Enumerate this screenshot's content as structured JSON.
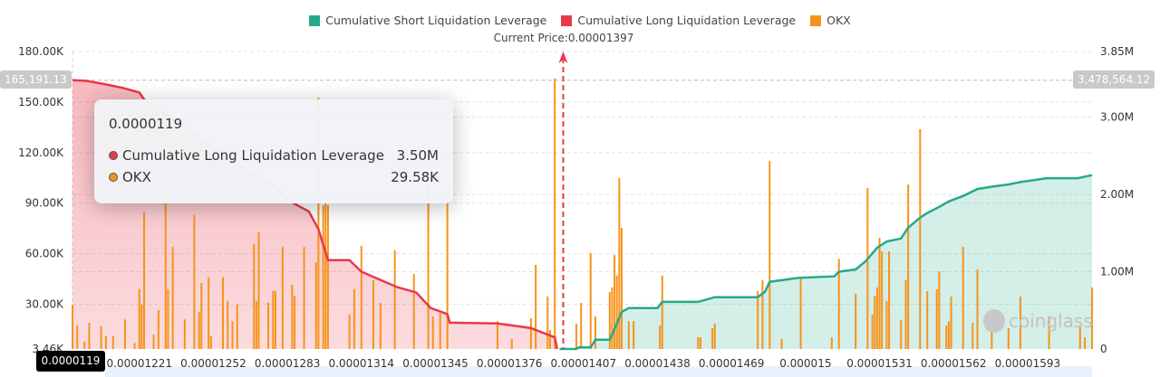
{
  "chart_data": {
    "type": "bar+area",
    "legend": [
      {
        "name": "Cumulative Short Liquidation Leverage",
        "color": "#26a98a"
      },
      {
        "name": "Cumulative Long Liquidation Leverage",
        "color": "#e8394a"
      },
      {
        "name": "OKX",
        "color": "#f7931a"
      }
    ],
    "legend_position": "top",
    "current_price_label": "Current Price:0.00001397",
    "current_price": 1.397e-05,
    "xlim": [
      1.193e-05,
      1.62e-05
    ],
    "x_ticks": [
      "0.00001221",
      "0.00001252",
      "0.00001283",
      "0.00001314",
      "0.00001345",
      "0.00001376",
      "0.00001407",
      "0.00001438",
      "0.00001469",
      "0.000015",
      "0.00001531",
      "0.00001562",
      "0.00001593"
    ],
    "y_left": {
      "ticks": [
        "180.00K",
        "150.00K",
        "120.00K",
        "90.00K",
        "60.00K",
        "30.00K",
        "3.46K"
      ],
      "tick_values": [
        180,
        150,
        120,
        90,
        60,
        30,
        3.46
      ],
      "range": [
        3.46,
        180
      ],
      "unit": "K"
    },
    "y_right": {
      "ticks": [
        "3.85M",
        "3.00M",
        "2.00M",
        "1.00M",
        "0"
      ],
      "tick_values": [
        3.85,
        3,
        2,
        1,
        0
      ],
      "range": [
        0,
        3.85
      ],
      "unit": "M"
    },
    "grid": true,
    "crosshair": {
      "x_label": "0.0000119",
      "y_left_label": "165,191.13",
      "y_right_label": "3,478,564.12"
    },
    "tooltip": {
      "title": "0.0000119",
      "rows": [
        {
          "label": "Cumulative Long Liquidation Leverage",
          "value": "3.50M",
          "color": "#e8394a"
        },
        {
          "label": "OKX",
          "value": "29.58K",
          "color": "#f7931a"
        }
      ]
    },
    "watermark": "coinglass",
    "long_curve_M": [
      [
        1.193e-05,
        3.48
      ],
      [
        1.199e-05,
        3.47
      ],
      [
        1.206e-05,
        3.43
      ],
      [
        1.214e-05,
        3.38
      ],
      [
        1.221e-05,
        3.32
      ],
      [
        1.223e-05,
        3.23
      ],
      [
        1.239e-05,
        2.88
      ],
      [
        1.261e-05,
        2.41
      ],
      [
        1.277e-05,
        2.11
      ],
      [
        1.286e-05,
        1.88
      ],
      [
        1.292e-05,
        1.78
      ],
      [
        1.296e-05,
        1.55
      ],
      [
        1.3e-05,
        1.15
      ],
      [
        1.309e-05,
        1.15
      ],
      [
        1.314e-05,
        1.0
      ],
      [
        1.32e-05,
        0.92
      ],
      [
        1.329e-05,
        0.8
      ],
      [
        1.337e-05,
        0.73
      ],
      [
        1.343e-05,
        0.53
      ],
      [
        1.35e-05,
        0.45
      ],
      [
        1.351e-05,
        0.34
      ],
      [
        1.371e-05,
        0.33
      ],
      [
        1.385e-05,
        0.27
      ],
      [
        1.395e-05,
        0.15
      ],
      [
        1.396e-05,
        0
      ]
    ],
    "short_curve_M": [
      [
        1.397e-05,
        0
      ],
      [
        1.404e-05,
        0
      ],
      [
        1.405e-05,
        0.02
      ],
      [
        1.41e-05,
        0.02
      ],
      [
        1.412e-05,
        0.12
      ],
      [
        1.418e-05,
        0.12
      ],
      [
        1.421e-05,
        0.33
      ],
      [
        1.423e-05,
        0.48
      ],
      [
        1.426e-05,
        0.53
      ],
      [
        1.438e-05,
        0.53
      ],
      [
        1.44e-05,
        0.61
      ],
      [
        1.455e-05,
        0.61
      ],
      [
        1.462e-05,
        0.67
      ],
      [
        1.48e-05,
        0.67
      ],
      [
        1.483e-05,
        0.74
      ],
      [
        1.485e-05,
        0.87
      ],
      [
        1.497e-05,
        0.92
      ],
      [
        1.512e-05,
        0.94
      ],
      [
        1.514e-05,
        1.0
      ],
      [
        1.521e-05,
        1.03
      ],
      [
        1.525e-05,
        1.13
      ],
      [
        1.53e-05,
        1.31
      ],
      [
        1.534e-05,
        1.39
      ],
      [
        1.54e-05,
        1.43
      ],
      [
        1.543e-05,
        1.57
      ],
      [
        1.548e-05,
        1.7
      ],
      [
        1.551e-05,
        1.76
      ],
      [
        1.556e-05,
        1.84
      ],
      [
        1.56e-05,
        1.91
      ],
      [
        1.566e-05,
        1.98
      ],
      [
        1.572e-05,
        2.07
      ],
      [
        1.578e-05,
        2.1
      ],
      [
        1.585e-05,
        2.13
      ],
      [
        1.59e-05,
        2.16
      ],
      [
        1.601e-05,
        2.21
      ],
      [
        1.614e-05,
        2.21
      ],
      [
        1.62e-05,
        2.25
      ]
    ],
    "okx_bars_K": [
      [
        1.193e-05,
        29.58
      ],
      [
        1.195e-05,
        17.4
      ],
      [
        1.198e-05,
        7.8
      ],
      [
        1.2e-05,
        19
      ],
      [
        1.205e-05,
        17
      ],
      [
        1.207e-05,
        11
      ],
      [
        1.21e-05,
        11
      ],
      [
        1.215e-05,
        21
      ],
      [
        1.219e-05,
        7
      ],
      [
        1.221e-05,
        39
      ],
      [
        1.222e-05,
        30
      ],
      [
        1.223e-05,
        84.5
      ],
      [
        1.227e-05,
        12
      ],
      [
        1.229e-05,
        26.5
      ],
      [
        1.232e-05,
        111
      ],
      [
        1.233e-05,
        39
      ],
      [
        1.235e-05,
        64
      ],
      [
        1.24e-05,
        21
      ],
      [
        1.244e-05,
        83
      ],
      [
        1.246e-05,
        25.5
      ],
      [
        1.247e-05,
        42.6
      ],
      [
        1.25e-05,
        46
      ],
      [
        1.251e-05,
        11
      ],
      [
        1.256e-05,
        46
      ],
      [
        1.258e-05,
        32
      ],
      [
        1.26e-05,
        20
      ],
      [
        1.262e-05,
        30
      ],
      [
        1.269e-05,
        66
      ],
      [
        1.27e-05,
        32
      ],
      [
        1.271e-05,
        72.7
      ],
      [
        1.275e-05,
        31
      ],
      [
        1.277e-05,
        38
      ],
      [
        1.278e-05,
        38
      ],
      [
        1.281e-05,
        64
      ],
      [
        1.285e-05,
        41.6
      ],
      [
        1.286e-05,
        35
      ],
      [
        1.29e-05,
        64
      ],
      [
        1.295e-05,
        55
      ],
      [
        1.296e-05,
        152.6
      ],
      [
        1.298e-05,
        88.8
      ],
      [
        1.299e-05,
        92.5
      ],
      [
        1.3e-05,
        88.8
      ],
      [
        1.309e-05,
        23.9
      ],
      [
        1.311e-05,
        39
      ],
      [
        1.314e-05,
        64.6
      ],
      [
        1.319e-05,
        44.2
      ],
      [
        1.322e-05,
        30.8
      ],
      [
        1.328e-05,
        62
      ],
      [
        1.336e-05,
        48
      ],
      [
        1.342e-05,
        103
      ],
      [
        1.344e-05,
        22.8
      ],
      [
        1.347e-05,
        24.4
      ],
      [
        1.35e-05,
        91
      ],
      [
        1.371e-05,
        20
      ],
      [
        1.377e-05,
        9.4
      ],
      [
        1.385e-05,
        21.7
      ],
      [
        1.387e-05,
        53.4
      ],
      [
        1.392e-05,
        34.6
      ],
      [
        1.393e-05,
        14.7
      ],
      [
        1.395e-05,
        164
      ],
      [
        1.404e-05,
        18.5
      ],
      [
        1.406e-05,
        30.8
      ],
      [
        1.41e-05,
        60.4
      ],
      [
        1.412e-05,
        22.8
      ],
      [
        1.418e-05,
        37.3
      ],
      [
        1.419e-05,
        40
      ],
      [
        1.42e-05,
        59.3
      ],
      [
        1.421e-05,
        47
      ],
      [
        1.422e-05,
        105
      ],
      [
        1.423e-05,
        75.4
      ],
      [
        1.426e-05,
        20
      ],
      [
        1.428e-05,
        20
      ],
      [
        1.439e-05,
        17.4
      ],
      [
        1.44e-05,
        47
      ],
      [
        1.455e-05,
        10.4
      ],
      [
        1.456e-05,
        10.4
      ],
      [
        1.461e-05,
        15.8
      ],
      [
        1.462e-05,
        18.5
      ],
      [
        1.48e-05,
        37.8
      ],
      [
        1.482e-05,
        44.2
      ],
      [
        1.485e-05,
        115
      ],
      [
        1.49e-05,
        9.4
      ],
      [
        1.498e-05,
        45.3
      ],
      [
        1.511e-05,
        10.4
      ],
      [
        1.514e-05,
        57
      ],
      [
        1.521e-05,
        36.2
      ],
      [
        1.526e-05,
        99
      ],
      [
        1.528e-05,
        23.9
      ],
      [
        1.529e-05,
        35
      ],
      [
        1.53e-05,
        40
      ],
      [
        1.531e-05,
        69.5
      ],
      [
        1.532e-05,
        61.4
      ],
      [
        1.534e-05,
        32
      ],
      [
        1.535e-05,
        61.4
      ],
      [
        1.54e-05,
        20.6
      ],
      [
        1.542e-05,
        44.2
      ],
      [
        1.543e-05,
        101
      ],
      [
        1.548e-05,
        133.9
      ],
      [
        1.551e-05,
        37.8
      ],
      [
        1.555e-05,
        38.9
      ],
      [
        1.556e-05,
        49.6
      ],
      [
        1.559e-05,
        17.4
      ],
      [
        1.56e-05,
        20
      ],
      [
        1.561e-05,
        34.6
      ],
      [
        1.566e-05,
        64
      ],
      [
        1.57e-05,
        19
      ],
      [
        1.572e-05,
        50.7
      ],
      [
        1.578e-05,
        19
      ],
      [
        1.585e-05,
        15.8
      ],
      [
        1.59e-05,
        34.6
      ],
      [
        1.602e-05,
        22.8
      ],
      [
        1.615e-05,
        17.4
      ],
      [
        1.617e-05,
        10.4
      ],
      [
        1.62e-05,
        40
      ]
    ]
  }
}
